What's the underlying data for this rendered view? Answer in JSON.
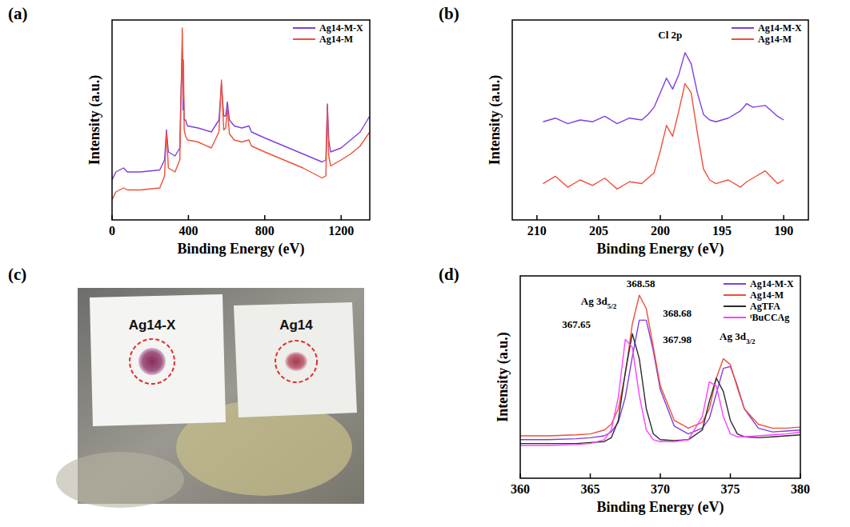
{
  "chart_data": [
    {
      "type": "line",
      "panel": "(a)",
      "x_label": "Binding Energy (eV)",
      "y_label": "Intensity (a.u.)",
      "xlim": [
        0,
        1350
      ],
      "xticks": [
        0,
        400,
        800,
        1200
      ],
      "ylim": [
        0,
        100
      ],
      "tick_labels": "x",
      "legend": "upper right",
      "x": [
        0,
        20,
        60,
        80,
        150,
        250,
        275,
        285,
        295,
        330,
        355,
        360,
        368,
        372,
        374,
        378,
        385,
        395,
        450,
        520,
        560,
        573,
        585,
        595,
        604,
        615,
        640,
        680,
        717,
        730,
        800,
        900,
        1000,
        1100,
        1120,
        1128,
        1135,
        1145,
        1200,
        1250,
        1300,
        1350
      ],
      "series": [
        {
          "name": "Ag14-M-X",
          "color": "#7f3fe0",
          "values": [
            20,
            24,
            26,
            24,
            24,
            25,
            30,
            45,
            34,
            32,
            36,
            60,
            85,
            55,
            66,
            50,
            50,
            47,
            46,
            44,
            50,
            68,
            52,
            52,
            59,
            50,
            47,
            46,
            47,
            44,
            41,
            37,
            33,
            29,
            30,
            58,
            40,
            34,
            36,
            40,
            44,
            52
          ]
        },
        {
          "name": "Ag14-M",
          "color": "#ef4f3a",
          "values": [
            10,
            14,
            16,
            15,
            15,
            16,
            22,
            44,
            26,
            24,
            30,
            55,
            96,
            60,
            80,
            45,
            42,
            40,
            39,
            36,
            44,
            70,
            45,
            46,
            56,
            43,
            40,
            39,
            40,
            37,
            34,
            30,
            26,
            21,
            22,
            57,
            32,
            27,
            30,
            33,
            37,
            44
          ]
        }
      ]
    },
    {
      "type": "line",
      "panel": "(b)",
      "x_label": "Binding Energy (eV)",
      "y_label": "Intensity (a.u.)",
      "xlim": [
        212,
        188
      ],
      "xticks": [
        210,
        205,
        200,
        195,
        190
      ],
      "ylim": [
        0,
        110
      ],
      "tick_labels": "x",
      "legend": "upper right",
      "annotations": [
        {
          "text": "Cl 2p",
          "x": 199.2,
          "y": 100
        }
      ],
      "x": [
        209.5,
        208.5,
        207.5,
        206.5,
        205.5,
        204.5,
        203.5,
        202.5,
        201.5,
        201,
        200.5,
        200,
        199.5,
        199,
        198.5,
        198,
        197.5,
        197,
        196.5,
        196,
        195.5,
        194.5,
        193.5,
        193,
        192.5,
        191.5,
        190.5,
        190
      ],
      "series": [
        {
          "name": "Ag14-M-X",
          "color": "#7f3fe0",
          "values": [
            54,
            56,
            53,
            55,
            54,
            57,
            53,
            56,
            55,
            58,
            62,
            70,
            78,
            72,
            80,
            92,
            86,
            70,
            58,
            55,
            54,
            56,
            60,
            64,
            62,
            63,
            57,
            55
          ]
        },
        {
          "name": "Ag14-M",
          "color": "#ef4f3a",
          "values": [
            20,
            24,
            18,
            22,
            19,
            23,
            17,
            21,
            20,
            23,
            26,
            38,
            52,
            46,
            60,
            75,
            70,
            48,
            28,
            22,
            20,
            22,
            18,
            21,
            23,
            27,
            20,
            22
          ]
        }
      ]
    },
    {
      "type": "line",
      "panel": "(d)",
      "x_label": "Binding Energy (eV)",
      "y_label": "Intensity (a.u.)",
      "xlim": [
        360,
        380
      ],
      "xticks": [
        360,
        365,
        370,
        375,
        380
      ],
      "ylim": [
        0,
        105
      ],
      "tick_labels": "x",
      "legend": "upper right",
      "annotations": [
        {
          "text": "368.58",
          "x": 368.6,
          "y": 99
        },
        {
          "text": "Ag 3d5/2",
          "x": 365.6,
          "y": 90
        },
        {
          "text": "368.68",
          "x": 371.2,
          "y": 84
        },
        {
          "text": "367.65",
          "x": 364,
          "y": 78
        },
        {
          "text": "367.98",
          "x": 371.2,
          "y": 70
        },
        {
          "text": "Ag 3d3/2",
          "x": 375.5,
          "y": 72
        }
      ],
      "x": [
        360,
        362,
        364,
        365,
        366,
        366.5,
        367,
        367.5,
        368,
        368.5,
        369,
        369.5,
        370,
        371,
        372,
        373,
        373.5,
        374,
        374.5,
        375,
        375.5,
        376,
        377,
        378,
        379,
        380
      ],
      "series": [
        {
          "name": "Ag14-M-X",
          "color": "#7f3fe0",
          "values": [
            20,
            20,
            20.5,
            21,
            22,
            24,
            29,
            42,
            63,
            82,
            82,
            66,
            46,
            27,
            23,
            26,
            31,
            44,
            57,
            58,
            48,
            36,
            26,
            24,
            24.5,
            25
          ]
        },
        {
          "name": "Ag14-M",
          "color": "#ef4f3a",
          "values": [
            22,
            22,
            22.5,
            23,
            25,
            28,
            36,
            54,
            80,
            95,
            88,
            68,
            48,
            30,
            26,
            29,
            36,
            52,
            62,
            59,
            47,
            36,
            28,
            26,
            26,
            26.5
          ]
        },
        {
          "name": "AgTFA",
          "color": "#2b2b2b",
          "values": [
            18,
            18,
            18,
            18.5,
            19,
            21,
            30,
            55,
            75,
            62,
            36,
            23,
            20,
            19.5,
            20,
            25,
            40,
            52,
            45,
            30,
            23,
            21.5,
            21,
            21.5,
            22,
            22.5
          ]
        },
        {
          "name": "ᵗBuCCAg",
          "color": "#ff40ff",
          "values": [
            17,
            17,
            17.5,
            18,
            20,
            25,
            42,
            72,
            68,
            43,
            25,
            20,
            19,
            19,
            20,
            32,
            50,
            48,
            32,
            23,
            21.5,
            21.5,
            22,
            22.5,
            23,
            24
          ]
        }
      ]
    }
  ],
  "photo": {
    "panel": "(c)",
    "labels": [
      "Ag14-X",
      "Ag14"
    ]
  }
}
